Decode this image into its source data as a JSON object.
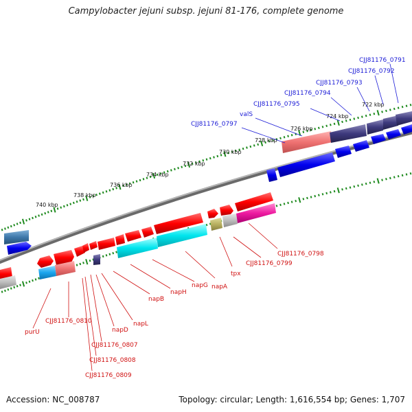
{
  "title": "Campylobacter jejuni subsp. jejuni 81-176, complete genome",
  "footer": {
    "accession": "Accession: NC_008787",
    "summary": "Topology: circular; Length: 1,616,554 bp; Genes: 1,707"
  },
  "colors": {
    "backbone": "#7a7a7a",
    "ticks": "#1e8a1e",
    "top_labels": "#1a1ad6",
    "bottom_labels": "#d01010",
    "forward_gene": "#ff1a1a",
    "reverse_gene": "#1414e6"
  },
  "scale_labels": [
    "740 kbp",
    "738 kbp",
    "736 kbp",
    "734 kbp",
    "732 kbp",
    "730 kbp",
    "728 kbp",
    "726 kbp",
    "724 kbp",
    "722 kbp"
  ],
  "top_gene_labels": [
    "CJJ81176_0791",
    "CJJ81176_0792",
    "CJJ81176_0793",
    "CJJ81176_0794",
    "CJJ81176_0795",
    "valS",
    "CJJ81176_0797"
  ],
  "bottom_gene_labels": [
    "CJJ81176_0798",
    "CJJ81176_0799",
    "tpx",
    "napA",
    "napG",
    "napH",
    "napB",
    "napL",
    "napD",
    "CJJ81176_0807",
    "CJJ81176_0808",
    "CJJ81176_0809",
    "CJJ81176_0810",
    "purU"
  ]
}
